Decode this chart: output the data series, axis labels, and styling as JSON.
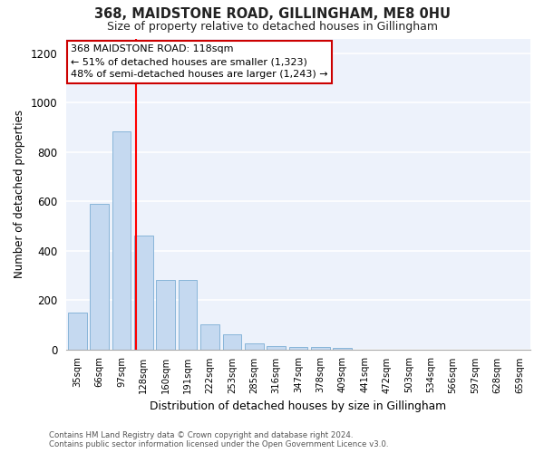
{
  "title": "368, MAIDSTONE ROAD, GILLINGHAM, ME8 0HU",
  "subtitle": "Size of property relative to detached houses in Gillingham",
  "xlabel": "Distribution of detached houses by size in Gillingham",
  "ylabel": "Number of detached properties",
  "bar_color": "#c5d9f0",
  "bar_edge_color": "#7badd4",
  "background_color": "#edf2fb",
  "grid_color": "#ffffff",
  "categories": [
    "35sqm",
    "66sqm",
    "97sqm",
    "128sqm",
    "160sqm",
    "191sqm",
    "222sqm",
    "253sqm",
    "285sqm",
    "316sqm",
    "347sqm",
    "378sqm",
    "409sqm",
    "441sqm",
    "472sqm",
    "503sqm",
    "534sqm",
    "566sqm",
    "597sqm",
    "628sqm",
    "659sqm"
  ],
  "values": [
    150,
    590,
    885,
    460,
    280,
    280,
    100,
    60,
    25,
    15,
    10,
    10,
    5,
    0,
    0,
    0,
    0,
    0,
    0,
    0,
    0
  ],
  "ylim": [
    0,
    1260
  ],
  "yticks": [
    0,
    200,
    400,
    600,
    800,
    1000,
    1200
  ],
  "annotation_text": "368 MAIDSTONE ROAD: 118sqm\n← 51% of detached houses are smaller (1,323)\n48% of semi-detached houses are larger (1,243) →",
  "annotation_box_color": "#ffffff",
  "annotation_box_edge": "#cc0000",
  "footer": "Contains HM Land Registry data © Crown copyright and database right 2024.\nContains public sector information licensed under the Open Government Licence v3.0.",
  "fig_width": 6.0,
  "fig_height": 5.0,
  "dpi": 100
}
